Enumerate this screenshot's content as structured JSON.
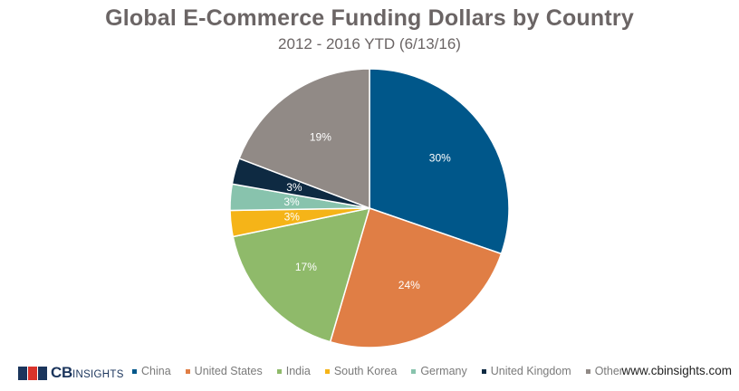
{
  "header": {
    "title": "Global E-Commerce Funding Dollars by Country",
    "subtitle": "2012 - 2016 YTD (6/13/16)"
  },
  "chart_data": {
    "type": "pie",
    "title": "Global E-Commerce Funding Dollars by Country",
    "subtitle": "2012 - 2016 YTD (6/13/16)",
    "legend_position": "bottom",
    "slices": [
      {
        "label": "China",
        "value": 30,
        "display": "30%",
        "color": "#00578a"
      },
      {
        "label": "United States",
        "value": 24,
        "display": "24%",
        "color": "#e07e45"
      },
      {
        "label": "India",
        "value": 17,
        "display": "17%",
        "color": "#8fba6a"
      },
      {
        "label": "South Korea",
        "value": 3,
        "display": "3%",
        "color": "#f5b418"
      },
      {
        "label": "Germany",
        "value": 3,
        "display": "3%",
        "color": "#88c3ad"
      },
      {
        "label": "United Kingdom",
        "value": 3,
        "display": "3%",
        "color": "#0e2a42"
      },
      {
        "label": "Other",
        "value": 19,
        "display": "19%",
        "color": "#918a86"
      }
    ]
  },
  "footer": {
    "logo_text_bold": "CB",
    "logo_text_light": "INSIGHTS",
    "website": "www.cbinsights.com",
    "logo_colors": [
      "#1b355c",
      "#d9332b",
      "#1b355c"
    ]
  }
}
